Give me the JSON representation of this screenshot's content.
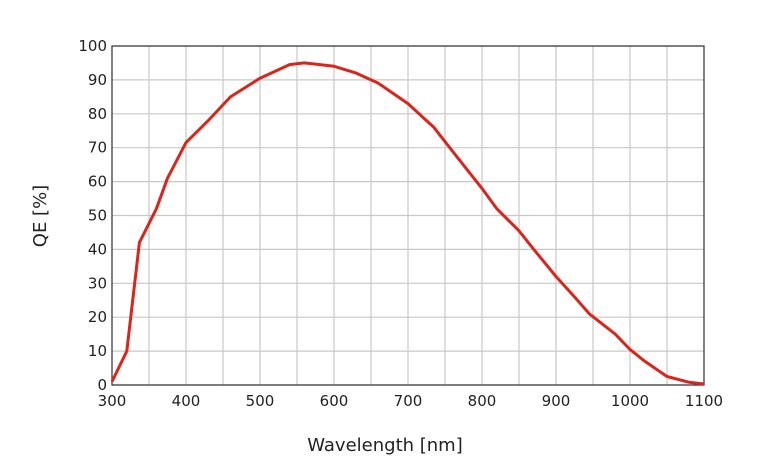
{
  "chart_data": {
    "type": "line",
    "title": "",
    "xlabel": "Wavelength [nm]",
    "ylabel": "QE [%]",
    "xlim": [
      300,
      1100
    ],
    "ylim": [
      0,
      100
    ],
    "xticks": [
      300,
      400,
      500,
      600,
      700,
      800,
      900,
      1000,
      1100
    ],
    "yticks": [
      0,
      10,
      20,
      30,
      40,
      50,
      60,
      70,
      80,
      90,
      100
    ],
    "grid": true,
    "x_grid_step": 50,
    "line_color": "#d9261c",
    "series": [
      {
        "x": [
          300,
          320,
          337,
          360,
          375,
          400,
          430,
          460,
          500,
          540,
          560,
          600,
          630,
          660,
          700,
          735,
          760,
          800,
          820,
          850,
          870,
          900,
          925,
          945,
          980,
          1000,
          1020,
          1050,
          1080,
          1100
        ],
        "y": [
          1,
          10,
          42,
          52,
          61,
          71.5,
          78,
          85,
          90.5,
          94.5,
          95,
          94,
          92,
          89,
          83,
          76,
          69,
          58,
          52,
          45.5,
          40,
          32,
          26,
          21,
          15,
          10.5,
          7,
          2.5,
          0.8,
          0.3
        ]
      }
    ]
  }
}
